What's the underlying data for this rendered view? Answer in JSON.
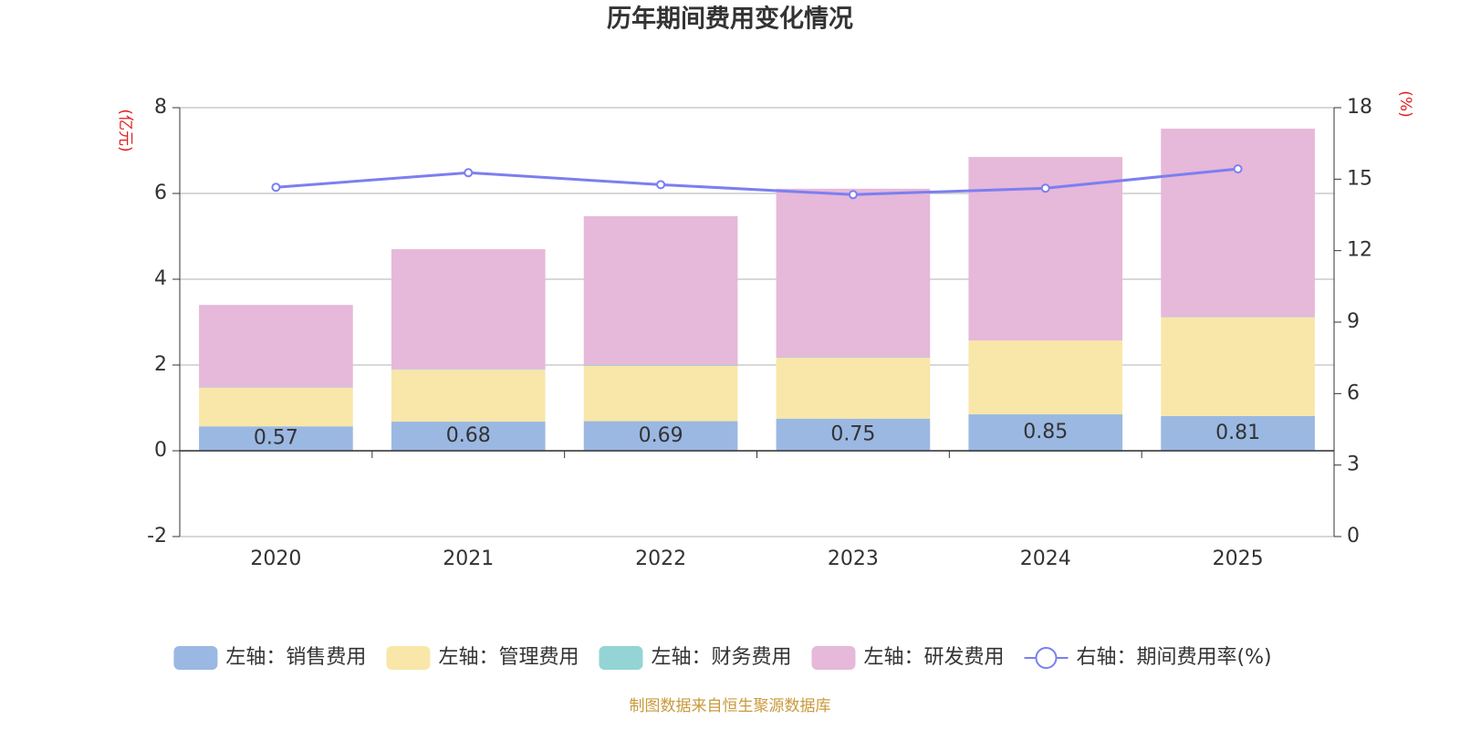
{
  "chart_data": {
    "type": "bar",
    "title": "历年期间费用变化情况",
    "y_label": "(亿元)",
    "y2_label": "(%)",
    "categories": [
      "2020",
      "2021",
      "2022",
      "2023",
      "2024",
      "2025"
    ],
    "series": [
      {
        "name": "左轴：销售费用",
        "color": "#9bb8e2",
        "axis": "y",
        "values": [
          0.57,
          0.68,
          0.69,
          0.75,
          0.85,
          0.81
        ],
        "show_labels": true
      },
      {
        "name": "左轴：管理费用",
        "color": "#f8e7a8",
        "axis": "y",
        "values": [
          0.9,
          1.21,
          1.29,
          1.42,
          1.72,
          2.3
        ]
      },
      {
        "name": "左轴：财务费用",
        "color": "#94d4d4",
        "axis": "y",
        "values": [
          0.01,
          0.01,
          0.02,
          0.01,
          -0.02,
          0.01
        ]
      },
      {
        "name": "左轴：研发费用",
        "color": "#e6b8d9",
        "axis": "y",
        "values": [
          1.92,
          2.8,
          3.47,
          3.93,
          4.28,
          4.39
        ]
      },
      {
        "name": "右轴：期间费用率(%)",
        "color": "#7b7ff0",
        "axis": "y2",
        "type": "line",
        "values": [
          14.66,
          15.27,
          14.77,
          14.35,
          14.62,
          15.43
        ]
      }
    ],
    "ylim": [
      -2,
      8
    ],
    "yticks": [
      -2,
      0,
      2,
      4,
      6,
      8
    ],
    "y2lim": [
      0,
      18
    ],
    "y2ticks": [
      0,
      3,
      6,
      9,
      12,
      15,
      18
    ],
    "grid": true,
    "source": "制图数据来自恒生聚源数据库"
  }
}
